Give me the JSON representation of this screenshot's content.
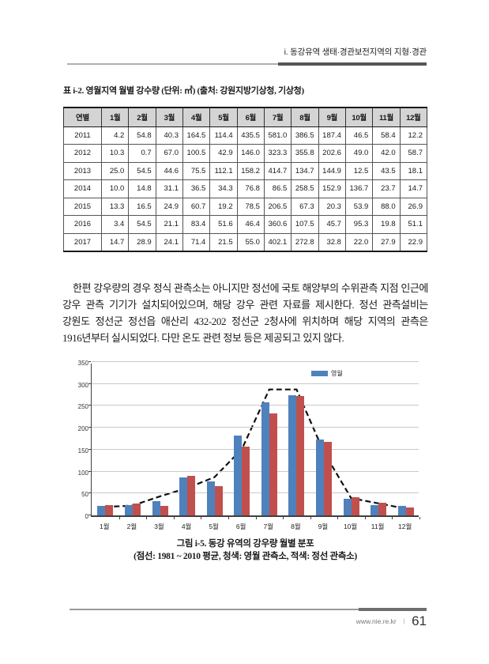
{
  "page": {
    "header": "i. 동강유역 생태·경관보전지역의 지형·경관",
    "footer": {
      "site": "www.nie.re.kr",
      "separator": "ㅣ",
      "page_number": "61"
    }
  },
  "table": {
    "title": "표 i-2. 영월지역 월별 강수량 (단위: ㎥) (출처: 강원지방기상청, 기상청)",
    "headers": [
      "연별",
      "1월",
      "2월",
      "3월",
      "4월",
      "5월",
      "6월",
      "7월",
      "8월",
      "9월",
      "10월",
      "11월",
      "12월"
    ],
    "rows": [
      [
        "2011",
        "4.2",
        "54.8",
        "40.3",
        "164.5",
        "114.4",
        "435.5",
        "581.0",
        "386.5",
        "187.4",
        "46.5",
        "58.4",
        "12.2"
      ],
      [
        "2012",
        "10.3",
        "0.7",
        "67.0",
        "100.5",
        "42.9",
        "146.0",
        "323.3",
        "355.8",
        "202.6",
        "49.0",
        "42.0",
        "58.7"
      ],
      [
        "2013",
        "25.0",
        "54.5",
        "44.6",
        "75.5",
        "112.1",
        "158.2",
        "414.7",
        "134.7",
        "144.9",
        "12.5",
        "43.5",
        "18.1"
      ],
      [
        "2014",
        "10.0",
        "14.8",
        "31.1",
        "36.5",
        "34.3",
        "76.8",
        "86.5",
        "258.5",
        "152.9",
        "136.7",
        "23.7",
        "14.7"
      ],
      [
        "2015",
        "13.3",
        "16.5",
        "24.9",
        "60.7",
        "19.2",
        "78.5",
        "206.5",
        "67.3",
        "20.3",
        "53.9",
        "88.0",
        "26.9"
      ],
      [
        "2016",
        "3.4",
        "54.5",
        "21.1",
        "83.4",
        "51.6",
        "46.4",
        "360.6",
        "107.5",
        "45.7",
        "95.3",
        "19.8",
        "51.1"
      ],
      [
        "2017",
        "14.7",
        "28.9",
        "24.1",
        "71.4",
        "21.5",
        "55.0",
        "402.1",
        "272.8",
        "32.8",
        "22.0",
        "27.9",
        "22.9"
      ]
    ]
  },
  "paragraph": "한편 강우량의 경우 정식 관측소는 아니지만 정선에 국토 해양부의 수위관측 지점 인근에 강우 관측 기기가 설치되어있으며, 해당 강우 관련 자료를 제시한다. 정선 관측설비는 강원도 정선군 정선읍 애산리 432-202 정선군 2청사에 위치하며 해당 지역의 관측은 1916년부터 실시되었다. 다만 온도 관련 정보 등은 제공되고 있지 않다.",
  "chart_data": {
    "type": "bar",
    "categories": [
      "1월",
      "2월",
      "3월",
      "4월",
      "5월",
      "6월",
      "7월",
      "8월",
      "9월",
      "10월",
      "11월",
      "12월"
    ],
    "series": [
      {
        "name": "영월",
        "type": "bar",
        "color": "#4f81bd",
        "values": [
          22,
          23,
          32,
          87,
          77,
          182,
          258,
          275,
          173,
          38,
          24,
          21
        ]
      },
      {
        "name": "정선",
        "type": "bar",
        "color": "#c0504d",
        "values": [
          23,
          27,
          21,
          90,
          66,
          157,
          233,
          272,
          167,
          41,
          29,
          19
        ]
      },
      {
        "name": "1981~2010 평균",
        "type": "line",
        "color": "#111111",
        "dashed": true,
        "values": [
          23,
          26,
          47,
          66,
          91,
          155,
          291,
          291,
          148,
          43,
          31,
          19
        ]
      }
    ],
    "title": "",
    "xlabel": "",
    "ylabel": "",
    "ylim": [
      0,
      350
    ],
    "ytick_step": 50,
    "grid": true,
    "legend": {
      "label": "영월",
      "position": "top-right"
    }
  },
  "figure": {
    "caption_line1": "그림 i-5. 동강 유역의 강우량 월별 분포",
    "caption_line2": "(점선: 1981 ~ 2010 평균, 청색: 영월 관측소, 적색: 정선 관측소)"
  }
}
